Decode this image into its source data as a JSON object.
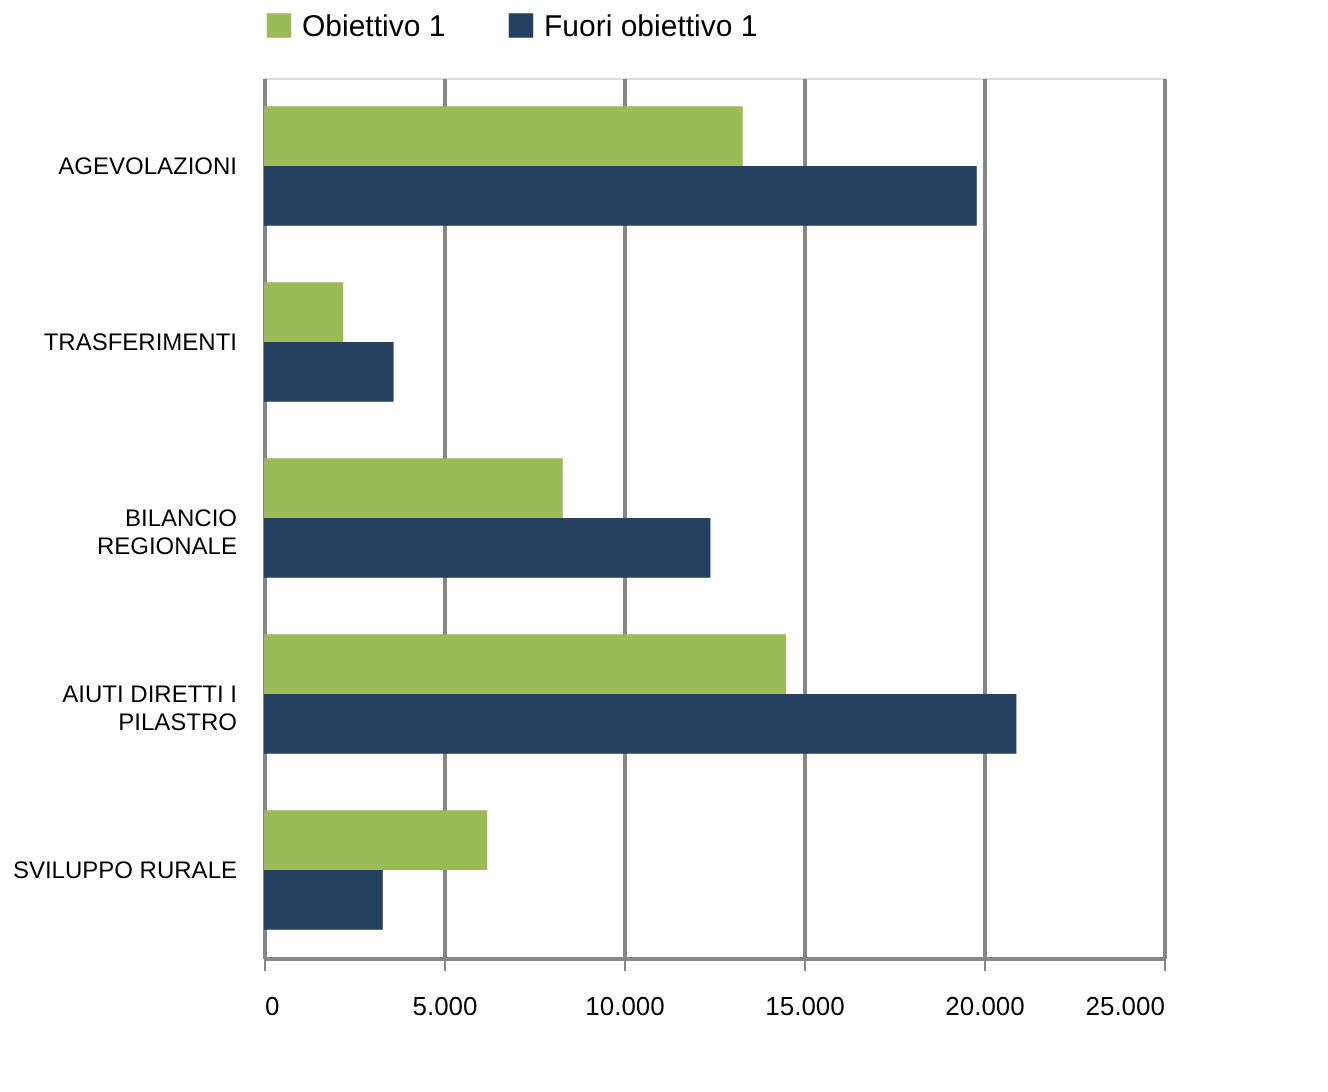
{
  "chart_data": {
    "type": "bar",
    "orientation": "horizontal",
    "categories": [
      "AGEVOLAZIONI",
      "TRASFERIMENTI",
      "BILANCIO\nREGIONALE",
      "AIUTI DIRETTI I\nPILASTRO",
      "SVILUPPO RURALE"
    ],
    "series": [
      {
        "name": "Obiettivo 1",
        "color": "#9bbb59",
        "values": [
          13300,
          2200,
          8300,
          14500,
          6200
        ]
      },
      {
        "name": "Fuori obiettivo 1",
        "color": "#264061",
        "values": [
          19800,
          3600,
          12400,
          20900,
          3300
        ]
      }
    ],
    "xlim": [
      0,
      25000
    ],
    "xticks": [
      0,
      {
        "value": 5000,
        "label": "5.000"
      },
      {
        "value": 10000,
        "label": "10.000"
      },
      {
        "value": 15000,
        "label": "15.000"
      },
      {
        "value": 20000,
        "label": "20.000"
      },
      {
        "value": 25000,
        "label": "25.000"
      }
    ],
    "grid": "x",
    "legend": "top"
  }
}
